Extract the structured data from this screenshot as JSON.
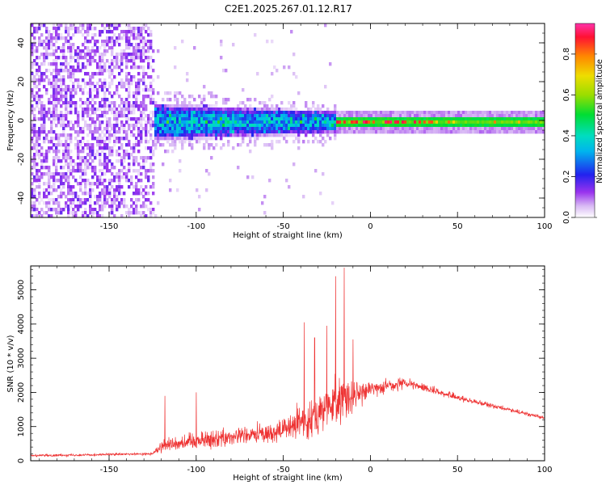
{
  "figure_title": "C2E1.2025.267.01.12.R17",
  "chart_data": [
    {
      "type": "heatmap",
      "title": "",
      "xlabel": "Height of straight line (km)",
      "ylabel": "Frequency (Hz)",
      "xlim": [
        -195,
        100
      ],
      "ylim": [
        -50,
        50
      ],
      "xticks": [
        -150,
        -100,
        -50,
        0,
        50,
        100
      ],
      "yticks": [
        -40,
        -20,
        0,
        20,
        40
      ],
      "colorbar": {
        "label": "Normalized spectral amplitude",
        "range": [
          0,
          0.95
        ],
        "ticks": [
          0.0,
          0.2,
          0.4,
          0.6,
          0.8
        ],
        "tick_labels": [
          "0.0",
          "0.2",
          "0.4",
          "0.6",
          "0.8"
        ],
        "colormap": "rainbow"
      },
      "regions": [
        {
          "x_range": [
            -195,
            -125
          ],
          "description": "broadband noise across all frequencies",
          "amplitude": 0.1
        },
        {
          "x_range": [
            -125,
            -20
          ],
          "center_freq": 0,
          "half_width_hz": [
            10,
            6
          ],
          "amplitude": 0.35
        },
        {
          "x_range": [
            -20,
            100
          ],
          "center_freq": 0,
          "half_width_hz": 3,
          "amplitude": 0.5,
          "peak_amplitude": 0.9
        }
      ]
    },
    {
      "type": "line",
      "title": "",
      "xlabel": "Height of straight line (km)",
      "ylabel": "SNR (10 * v/v)",
      "xlim": [
        -195,
        100
      ],
      "ylim": [
        0,
        5700
      ],
      "xticks": [
        -150,
        -100,
        -50,
        0,
        50,
        100
      ],
      "yticks": [
        0,
        1000,
        2000,
        3000,
        4000,
        5000
      ],
      "color": "#ee3333",
      "series": [
        {
          "name": "SNR",
          "envelope_x": [
            -195,
            -125,
            -120,
            -100,
            -80,
            -60,
            -50,
            -40,
            -30,
            -20,
            -15,
            -10,
            0,
            10,
            20,
            30,
            50,
            75,
            100
          ],
          "envelope_mean": [
            150,
            200,
            450,
            600,
            700,
            800,
            900,
            1100,
            1400,
            1700,
            1800,
            1900,
            2100,
            2200,
            2250,
            2150,
            1850,
            1550,
            1250
          ],
          "envelope_spread": [
            60,
            70,
            350,
            500,
            500,
            550,
            600,
            900,
            1100,
            1200,
            1400,
            1000,
            350,
            400,
            300,
            250,
            150,
            120,
            100
          ],
          "peaks": [
            {
              "x": -118,
              "y": 1900
            },
            {
              "x": -100,
              "y": 2000
            },
            {
              "x": -38,
              "y": 4050
            },
            {
              "x": -32,
              "y": 3600
            },
            {
              "x": -25,
              "y": 3950
            },
            {
              "x": -20,
              "y": 5400
            },
            {
              "x": -15,
              "y": 5650
            },
            {
              "x": -10,
              "y": 3550
            }
          ]
        }
      ]
    }
  ]
}
